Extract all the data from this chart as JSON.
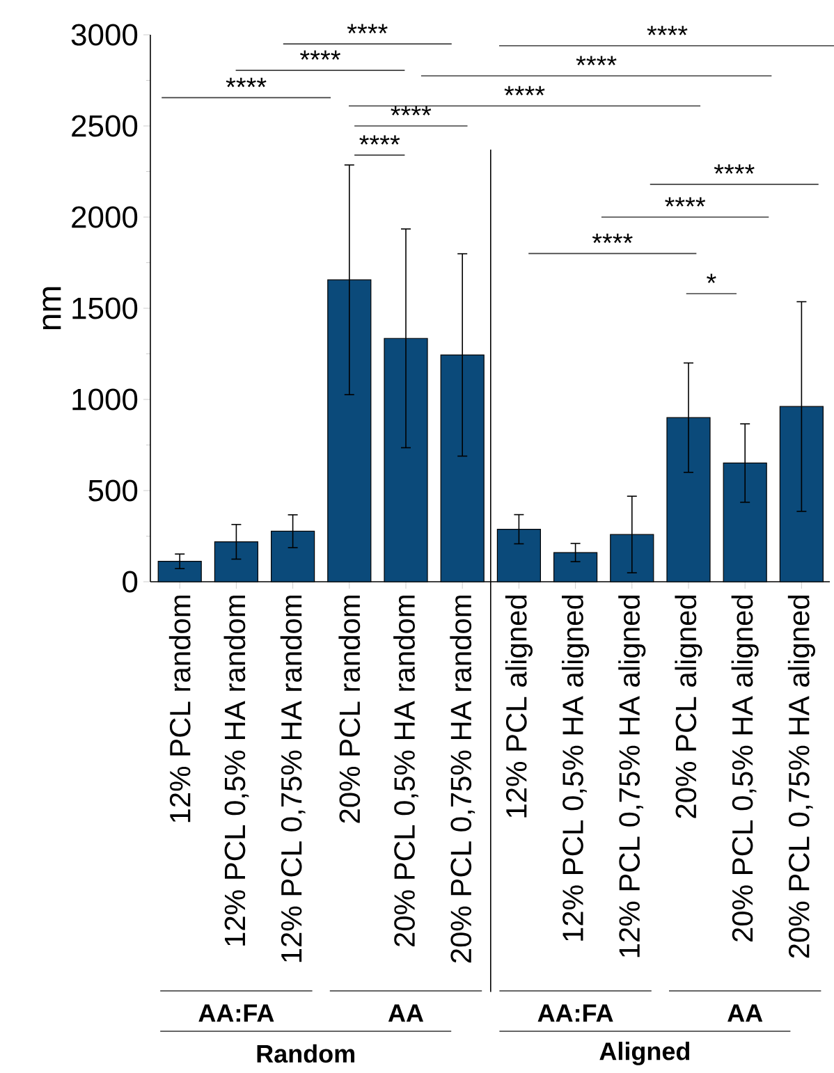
{
  "chart_data": {
    "type": "bar",
    "ylabel": "nm",
    "categories": [
      "12% PCL random",
      "12% PCL 0,5% HA random",
      "12% PCL 0,75% HA random",
      "20% PCL random",
      "20% PCL 0,5% HA random",
      "20% PCL 0,75% HA random",
      "12% PCL aligned",
      "12% PCL 0,5% HA aligned",
      "12% PCL 0,75% HA aligned",
      "20% PCL aligned",
      "20% PCL 0,5% HA aligned",
      "20% PCL 0,75% HA aligned"
    ],
    "values": [
      112,
      219,
      277,
      1656,
      1335,
      1244,
      288,
      160,
      259,
      900,
      651,
      961
    ],
    "errors": [
      40,
      95,
      90,
      630,
      600,
      555,
      80,
      50,
      210,
      300,
      215,
      575
    ],
    "color": "#0b4a7a",
    "ylim": [
      0,
      3000
    ],
    "yticks": [
      0,
      500,
      1000,
      1500,
      2000,
      2500,
      3000
    ],
    "annotations": [
      "****",
      "****",
      "****",
      "****",
      "****",
      "****",
      "****",
      "****",
      "****",
      "****",
      "****",
      "*",
      "AA:FA",
      "AA",
      "AA:FA",
      "AA",
      "Random",
      "Aligned"
    ]
  }
}
